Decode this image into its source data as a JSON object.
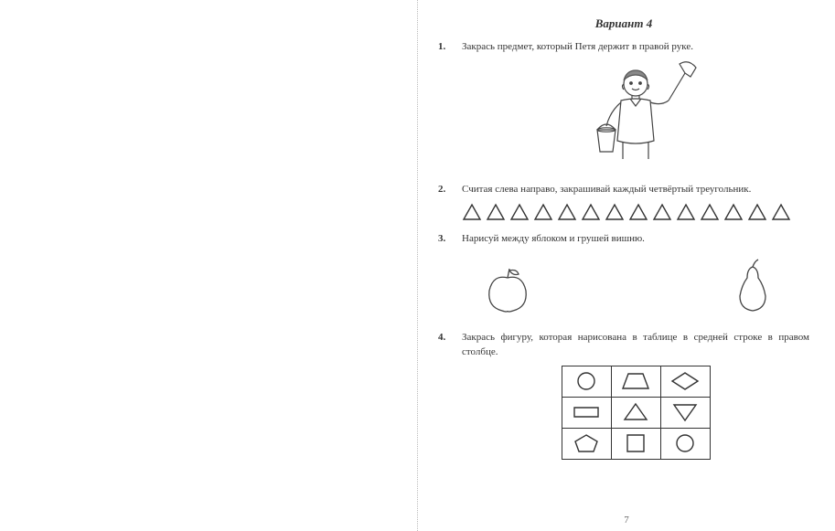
{
  "page": {
    "variant_title": "Вариант  4",
    "page_number": "7",
    "stroke": "#333333",
    "bg": "#ffffff"
  },
  "tasks": {
    "t1": {
      "num": "1.",
      "text": "Закрась предмет, который Петя держит в правой руке."
    },
    "t2": {
      "num": "2.",
      "text": "Считая слева направо, закрашивай каждый четвёртый треугольник.",
      "triangle_count": 14
    },
    "t3": {
      "num": "3.",
      "text": "Нарисуй между яблоком и грушей вишню."
    },
    "t4": {
      "num": "4.",
      "text": "Закрась фигуру, которая нарисована в таблице в средней строке в правом столбце."
    }
  },
  "shape_grid": {
    "rows": [
      [
        "circle",
        "trapezoid",
        "diamond"
      ],
      [
        "rectangle",
        "triangle-up",
        "triangle-down"
      ],
      [
        "pentagon",
        "square",
        "circle"
      ]
    ]
  }
}
